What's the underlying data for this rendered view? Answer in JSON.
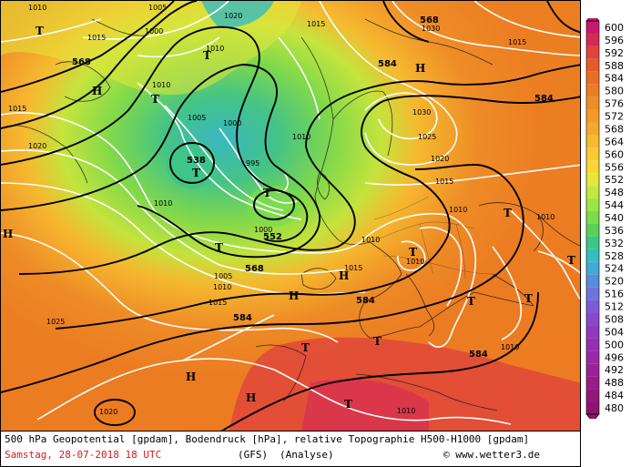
{
  "footer": {
    "title": "500 hPa Geopotential [gpdam], Bodendruck [hPa], relative Topographie H500-H1000 [gpdam]",
    "date": "Samstag, 28-07-2018  18 UTC",
    "model": "(GFS)",
    "mode": "(Analyse)",
    "copyright": "© www.wetter3.de"
  },
  "legend": {
    "levels": [
      "600",
      "596",
      "592",
      "588",
      "584",
      "580",
      "576",
      "572",
      "568",
      "564",
      "560",
      "556",
      "552",
      "548",
      "544",
      "540",
      "536",
      "532",
      "528",
      "524",
      "520",
      "516",
      "512",
      "508",
      "504",
      "500",
      "496",
      "492",
      "488",
      "484",
      "480"
    ],
    "colors": [
      "#c8186e",
      "#d62a56",
      "#e0433c",
      "#e65a2a",
      "#ea6e22",
      "#ec7d22",
      "#ee8c26",
      "#f09a2a",
      "#f3a92e",
      "#f6ba30",
      "#f8c932",
      "#f8d734",
      "#e6e63a",
      "#c2e83e",
      "#9ee444",
      "#7cdc4c",
      "#5ad258",
      "#3cc68a",
      "#36bcbe",
      "#42a8d4",
      "#5a8cdc",
      "#6e74dc",
      "#7c5cd6",
      "#8848cc",
      "#9038c0",
      "#9430b4",
      "#9828a6",
      "#9a2298",
      "#981c8a",
      "#94187c",
      "#8e1470"
    ]
  },
  "map_labels": {
    "pressure": [
      "1010",
      "1005",
      "1000",
      "1020",
      "1015",
      "1010",
      "1015",
      "1030",
      "1015",
      "1015",
      "1020",
      "1010",
      "1005",
      "1000",
      "995",
      "1010",
      "1025",
      "1030",
      "1020",
      "1015",
      "1010",
      "1010",
      "1010",
      "1015",
      "1010",
      "1005",
      "1000",
      "1010",
      "1010",
      "1015",
      "1025",
      "1020",
      "1010",
      "1010"
    ],
    "geopotential": [
      "568",
      "568",
      "584",
      "584",
      "538",
      "552",
      "568",
      "584",
      "584",
      "584"
    ],
    "highs": [
      "H",
      "H",
      "H",
      "H",
      "H",
      "H",
      "H"
    ],
    "lows": [
      "T",
      "T",
      "T",
      "T",
      "T",
      "T",
      "T",
      "T",
      "T",
      "T",
      "T",
      "T",
      "T",
      "T"
    ]
  }
}
